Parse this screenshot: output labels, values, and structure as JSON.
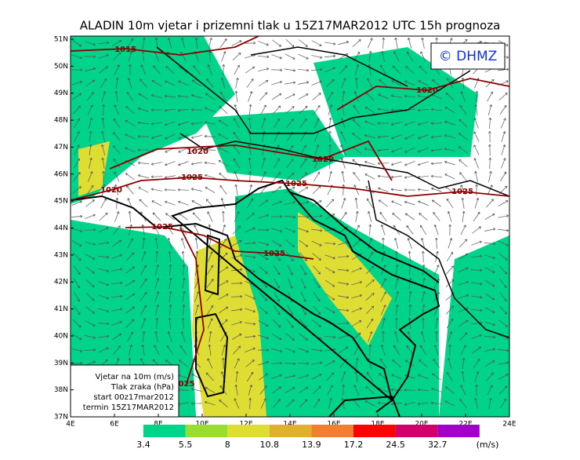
{
  "title": "ALADIN 10m vjetar i prizemni tlak u 15Z17MAR2012 UTC 15h prognoza",
  "watermark": "© DHMZ",
  "latitude_labels": [
    "51N",
    "50N",
    "49N",
    "48N",
    "47N",
    "46N",
    "45N",
    "44N",
    "43N",
    "42N",
    "41N",
    "40N",
    "39N",
    "38N",
    "37N"
  ],
  "longitude_labels": [
    "4E",
    "6E",
    "8E",
    "10E",
    "12E",
    "14E",
    "16E",
    "18E",
    "20E",
    "22E",
    "24E"
  ],
  "isobar_labels": [
    "1015",
    "1020",
    "1020",
    "1020",
    "1025",
    "1020",
    "1025",
    "1025",
    "1025",
    "1025",
    "025"
  ],
  "legend_box": [
    "Vjetar na 10m (m/s)",
    "Tlak zraka (hPa)",
    "start 00z17mar2012",
    "termin 15Z17MAR2012"
  ],
  "colorbar": {
    "values": [
      3.4,
      5.5,
      8,
      10.8,
      13.9,
      17.2,
      24.5,
      32.7
    ],
    "unit": "(m/s)",
    "colors": [
      "#00d38a",
      "#99dd33",
      "#dddd33",
      "#e0b030",
      "#f08030",
      "#ff0000",
      "#d0006a",
      "#a000c8"
    ]
  }
}
